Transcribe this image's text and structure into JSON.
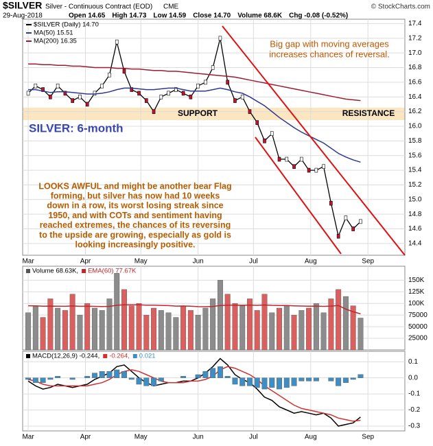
{
  "header": {
    "symbol": "$SILVER",
    "name": "Silver - Continuous Contract (EOD)",
    "exchange": "CME",
    "date": "29-Aug-2018",
    "copyright": "© StockCharts.com",
    "quote": [
      "Open 14.65",
      "High 14.73",
      "Low 14.59",
      "Close 14.70",
      "Volume 68.6K",
      "Chg -0.08 (-0.52%)"
    ]
  },
  "chart_data": [
    {
      "type": "line",
      "title": "SILVER: 6-month",
      "annotations": {
        "gap": [
          "Big gap with moving averages",
          "increases chances of reversal."
        ],
        "support": "SUPPORT",
        "resistance": "RESISTANCE",
        "comment": [
          "LOOKS AWFUL and might be another bear Flag",
          "forming, but silver has now had 10 weeks",
          "down in a row, its worst losing streak since",
          "1950, and with COTs and sentiment having",
          "reached extremes, the chances of its reversing",
          "to the upside are growing, especially as gold is",
          "looking increasingly positive."
        ]
      },
      "x": [
        0,
        4,
        8,
        12,
        16,
        20,
        24,
        28,
        32,
        36,
        40,
        44,
        48,
        52,
        56,
        60,
        64,
        68,
        72,
        76,
        80,
        84,
        88,
        92,
        96,
        100,
        104,
        108,
        112,
        116,
        120,
        124,
        128,
        132,
        136,
        140,
        144,
        148,
        152,
        156,
        160,
        164,
        168,
        172,
        176,
        180
      ],
      "xlim": [
        -3,
        204
      ],
      "xticks": [
        {
          "value": 0,
          "label": "Mar"
        },
        {
          "value": 31,
          "label": "Apr"
        },
        {
          "value": 61,
          "label": "May"
        },
        {
          "value": 92,
          "label": "Jun"
        },
        {
          "value": 122,
          "label": "Jul"
        },
        {
          "value": 153,
          "label": "Aug"
        },
        {
          "value": 184,
          "label": "Sep"
        }
      ],
      "ylim": [
        14.24,
        17.46
      ],
      "yticks": [
        14.4,
        14.6,
        14.8,
        {
          "value": 15,
          "label": "15.0"
        },
        15.2,
        15.4,
        15.6,
        15.8,
        {
          "value": 16,
          "label": "16.0"
        },
        16.2,
        16.4,
        16.6,
        16.8,
        {
          "value": 17,
          "label": "17.0"
        },
        17.2,
        17.4
      ],
      "grid": true,
      "series": [
        {
          "name": "$SILVER (Daily) 14.70",
          "color": "#000000",
          "values": [
            16.45,
            16.55,
            16.5,
            16.4,
            16.55,
            16.45,
            16.35,
            16.4,
            16.3,
            16.45,
            16.55,
            16.7,
            17.15,
            16.75,
            16.5,
            16.45,
            16.35,
            16.2,
            16.4,
            16.45,
            16.5,
            16.45,
            16.4,
            16.55,
            16.6,
            16.8,
            17.2,
            16.6,
            16.35,
            16.4,
            16.2,
            16.05,
            15.8,
            15.9,
            15.55,
            15.55,
            15.45,
            15.55,
            15.4,
            15.4,
            15.45,
            14.95,
            14.5,
            14.75,
            14.6,
            14.7
          ]
        },
        {
          "name": "MA(50) 15.51",
          "color": "#2b3990",
          "values": [
            16.5,
            16.5,
            16.48,
            16.46,
            16.47,
            16.47,
            16.46,
            16.45,
            16.44,
            16.44,
            16.45,
            16.47,
            16.5,
            16.52,
            16.52,
            16.51,
            16.5,
            16.5,
            16.51,
            16.52,
            16.52,
            16.5,
            16.48,
            16.48,
            16.48,
            16.5,
            16.52,
            16.5,
            16.47,
            16.45,
            16.4,
            16.34,
            16.28,
            16.2,
            16.12,
            16.05,
            15.98,
            15.92,
            15.87,
            15.82,
            15.77,
            15.7,
            15.63,
            15.58,
            15.54,
            15.51
          ]
        },
        {
          "name": "MA(200) 16.35",
          "color": "#9b1c31",
          "values": [
            16.85,
            16.85,
            16.84,
            16.84,
            16.83,
            16.83,
            16.82,
            16.82,
            16.81,
            16.8,
            16.8,
            16.8,
            16.79,
            16.79,
            16.78,
            16.78,
            16.77,
            16.76,
            16.76,
            16.75,
            16.75,
            16.74,
            16.73,
            16.72,
            16.71,
            16.7,
            16.69,
            16.68,
            16.67,
            16.65,
            16.63,
            16.61,
            16.59,
            16.57,
            16.55,
            16.53,
            16.51,
            16.49,
            16.47,
            16.45,
            16.43,
            16.41,
            16.39,
            16.37,
            16.36,
            16.35
          ]
        }
      ]
    },
    {
      "type": "bar",
      "x": [
        0,
        4,
        8,
        12,
        16,
        20,
        24,
        28,
        32,
        36,
        40,
        44,
        48,
        52,
        56,
        60,
        64,
        68,
        72,
        76,
        80,
        84,
        88,
        92,
        96,
        100,
        104,
        108,
        112,
        116,
        120,
        124,
        128,
        132,
        136,
        140,
        144,
        148,
        152,
        156,
        160,
        164,
        168,
        172,
        176,
        180
      ],
      "xlim": [
        -3,
        204
      ],
      "xticks": [
        {
          "value": 0,
          "label": "Mar"
        },
        {
          "value": 31,
          "label": "Apr"
        },
        {
          "value": 61,
          "label": "May"
        },
        {
          "value": 92,
          "label": "Jun"
        },
        {
          "value": 122,
          "label": "Jul"
        },
        {
          "value": 153,
          "label": "Aug"
        },
        {
          "value": 184,
          "label": "Sep"
        }
      ],
      "ylim": [
        0,
        180000
      ],
      "yticks": [
        25000,
        50000,
        75000,
        {
          "value": 100000,
          "label": "100K"
        },
        {
          "value": 125000,
          "label": "125K"
        },
        {
          "value": 150000,
          "label": "150K"
        }
      ],
      "grid": true,
      "series": [
        {
          "name": "Volume 68.63K,",
          "type": "bar",
          "color": "#555555",
          "up_color": "#8c8c8c",
          "down_color": "#d9605f",
          "values": [
            80000,
            95000,
            70000,
            110000,
            90000,
            85000,
            120000,
            75000,
            100000,
            90000,
            85000,
            110000,
            165000,
            130000,
            95000,
            100000,
            75000,
            90000,
            85000,
            80000,
            70000,
            95000,
            85000,
            75000,
            90000,
            110000,
            150000,
            120000,
            100000,
            95000,
            110000,
            85000,
            120000,
            80000,
            90000,
            95000,
            75000,
            85000,
            90000,
            100000,
            80000,
            110000,
            130000,
            115000,
            95000,
            68630
          ]
        },
        {
          "name": "EMA(60) 77.67K",
          "type": "line",
          "color": "#c0262c",
          "values": [
            95000,
            94800,
            94000,
            94300,
            94100,
            93800,
            94500,
            93800,
            94000,
            93700,
            93300,
            93700,
            96000,
            97100,
            97000,
            97100,
            96400,
            96200,
            95800,
            95300,
            94300,
            94400,
            94000,
            93100,
            93000,
            93600,
            95500,
            96300,
            96300,
            96100,
            96500,
            95900,
            96600,
            95900,
            95600,
            95600,
            94800,
            94400,
            94200,
            94300,
            93700,
            94300,
            95400,
            88000,
            82000,
            77670
          ]
        }
      ]
    },
    {
      "type": "line",
      "x": [
        0,
        4,
        8,
        12,
        16,
        20,
        24,
        28,
        32,
        36,
        40,
        44,
        48,
        52,
        56,
        60,
        64,
        68,
        72,
        76,
        80,
        84,
        88,
        92,
        96,
        100,
        104,
        108,
        112,
        116,
        120,
        124,
        128,
        132,
        136,
        140,
        144,
        148,
        152,
        156,
        160,
        164,
        168,
        172,
        176,
        180
      ],
      "xlim": [
        -3,
        204
      ],
      "xticks": [
        {
          "value": 0,
          "label": "Mar"
        },
        {
          "value": 31,
          "label": "Apr"
        },
        {
          "value": 61,
          "label": "May"
        },
        {
          "value": 92,
          "label": "Jun"
        },
        {
          "value": 122,
          "label": "Jul"
        },
        {
          "value": 153,
          "label": "Aug"
        },
        {
          "value": 184,
          "label": "Sep"
        }
      ],
      "ylim": [
        -0.33,
        0.165
      ],
      "yticks": [
        -0.3,
        -0.2,
        -0.1,
        {
          "value": 0,
          "label": "0.0"
        },
        0.1
      ],
      "grid": true,
      "series": [
        {
          "name": "MACD(12,26,9) -0.244,",
          "type": "line",
          "color": "#000000",
          "values": [
            -0.02,
            -0.05,
            -0.07,
            -0.06,
            -0.04,
            -0.05,
            -0.06,
            -0.05,
            -0.04,
            -0.01,
            0.01,
            0.03,
            0.07,
            0.08,
            0.04,
            0.0,
            -0.03,
            -0.05,
            -0.04,
            -0.03,
            -0.03,
            -0.02,
            -0.02,
            0.0,
            0.03,
            0.07,
            0.12,
            0.08,
            0.02,
            -0.01,
            -0.03,
            -0.07,
            -0.12,
            -0.14,
            -0.18,
            -0.2,
            -0.22,
            -0.21,
            -0.22,
            -0.23,
            -0.22,
            -0.25,
            -0.3,
            -0.29,
            -0.28,
            -0.244
          ]
        },
        {
          "name": "-0.264,",
          "type": "line",
          "color": "#d0312d",
          "values": [
            -0.01,
            -0.02,
            -0.04,
            -0.05,
            -0.05,
            -0.05,
            -0.05,
            -0.05,
            -0.05,
            -0.04,
            -0.03,
            -0.01,
            0.02,
            0.04,
            0.05,
            0.04,
            0.02,
            0.0,
            -0.02,
            -0.03,
            -0.03,
            -0.03,
            -0.02,
            -0.02,
            -0.01,
            0.01,
            0.05,
            0.07,
            0.06,
            0.04,
            0.02,
            -0.01,
            -0.05,
            -0.08,
            -0.11,
            -0.14,
            -0.17,
            -0.19,
            -0.2,
            -0.21,
            -0.22,
            -0.23,
            -0.25,
            -0.26,
            -0.27,
            -0.264
          ]
        },
        {
          "name": "0.021",
          "type": "bar",
          "color": "#3e8ec4",
          "values": [
            -0.01,
            -0.03,
            -0.03,
            -0.01,
            0.01,
            0.0,
            -0.01,
            0.0,
            0.01,
            0.03,
            0.04,
            0.04,
            0.05,
            0.04,
            -0.01,
            -0.04,
            -0.05,
            -0.05,
            -0.02,
            0.0,
            0.0,
            0.01,
            0.0,
            0.02,
            0.04,
            0.06,
            0.07,
            0.01,
            -0.04,
            -0.05,
            -0.05,
            -0.06,
            -0.07,
            -0.06,
            -0.07,
            -0.06,
            -0.05,
            -0.02,
            -0.02,
            -0.02,
            0.0,
            -0.02,
            -0.05,
            -0.03,
            -0.01,
            0.021
          ]
        }
      ]
    }
  ]
}
